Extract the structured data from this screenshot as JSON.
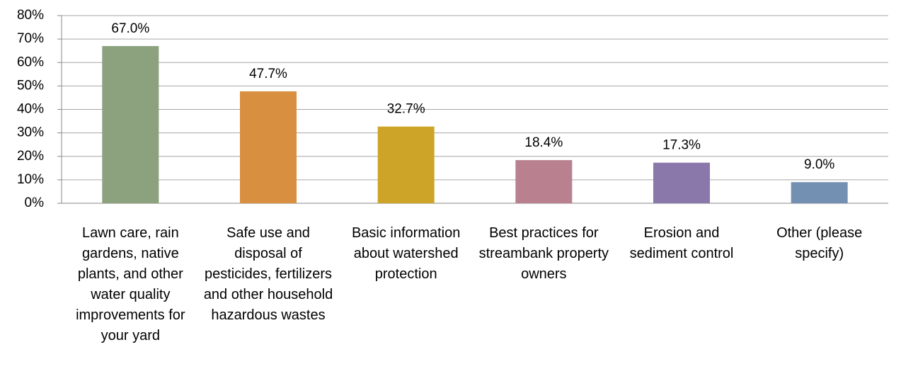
{
  "chart_data": {
    "type": "bar",
    "categories": [
      "Lawn care, rain gardens, native plants, and other water quality improvements for your yard",
      "Safe use and disposal of pesticides, fertilizers and other household hazardous wastes",
      "Basic information about watershed protection",
      "Best practices for streambank property owners",
      "Erosion and sediment control",
      "Other (please specify)"
    ],
    "values": [
      67.0,
      47.7,
      32.7,
      18.4,
      17.3,
      9.0
    ],
    "value_labels": [
      "67.0%",
      "47.7%",
      "32.7%",
      "18.4%",
      "17.3%",
      "9.0%"
    ],
    "colors": [
      "#8ca17e",
      "#d98f40",
      "#cda428",
      "#b98090",
      "#8a78ab",
      "#7390b2"
    ],
    "ylim": [
      0,
      80
    ],
    "yticks": [
      {
        "value": 0,
        "label": "0%"
      },
      {
        "value": 10,
        "label": "10%"
      },
      {
        "value": 20,
        "label": "20%"
      },
      {
        "value": 30,
        "label": "30%"
      },
      {
        "value": 40,
        "label": "40%"
      },
      {
        "value": 50,
        "label": "50%"
      },
      {
        "value": 60,
        "label": "60%"
      },
      {
        "value": 70,
        "label": "70%"
      },
      {
        "value": 80,
        "label": "80%"
      }
    ],
    "grid": true
  }
}
